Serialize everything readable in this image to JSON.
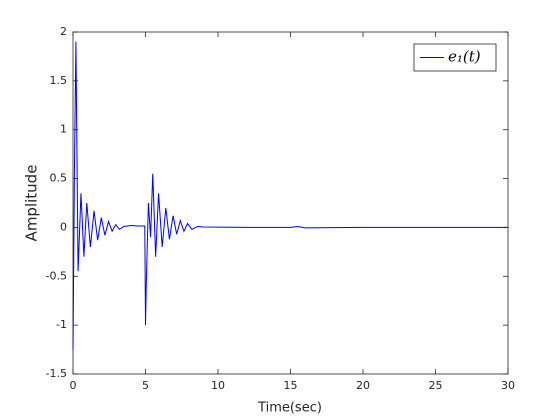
{
  "chart_data": {
    "type": "line",
    "xlabel": "Time(sec)",
    "ylabel": "Amplitude",
    "x": [
      0,
      0.1,
      0.2,
      0.35,
      0.55,
      0.75,
      0.95,
      1.2,
      1.45,
      1.7,
      1.95,
      2.2,
      2.45,
      2.7,
      2.95,
      3.2,
      3.5,
      4.0,
      4.5,
      4.95,
      5.0,
      5.05,
      5.2,
      5.35,
      5.5,
      5.7,
      5.9,
      6.15,
      6.4,
      6.65,
      6.9,
      7.15,
      7.4,
      7.65,
      7.9,
      8.2,
      8.6,
      9.0,
      12,
      15,
      15.5,
      16,
      20,
      25,
      30
    ],
    "series": [
      {
        "name": "e₁(t)",
        "color": "#0000ff",
        "values": [
          -1.25,
          0.6,
          1.9,
          -0.45,
          0.35,
          -0.3,
          0.25,
          -0.2,
          0.17,
          -0.13,
          0.1,
          -0.08,
          0.06,
          -0.04,
          0.03,
          -0.02,
          0.01,
          0.02,
          0.015,
          0.015,
          -1.0,
          -0.6,
          0.25,
          -0.1,
          0.55,
          -0.3,
          0.35,
          -0.2,
          0.2,
          -0.12,
          0.12,
          -0.07,
          0.07,
          -0.04,
          0.04,
          -0.02,
          0.01,
          0.005,
          0,
          0,
          0.01,
          -0.005,
          0,
          0,
          0
        ]
      }
    ],
    "xlim": [
      0,
      30
    ],
    "xticks": [
      0,
      5,
      10,
      15,
      20,
      25,
      30
    ],
    "ylim": [
      -1.5,
      2
    ],
    "yticks": [
      -1.5,
      -1,
      -0.5,
      0,
      0.5,
      1,
      1.5,
      2
    ],
    "grid": false,
    "legend": "northeast"
  }
}
